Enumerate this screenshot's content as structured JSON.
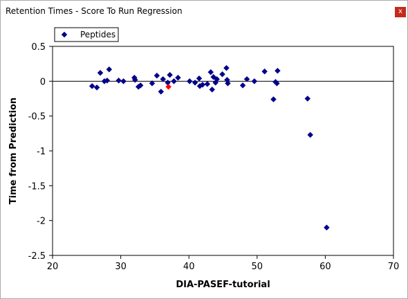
{
  "window": {
    "title": "Retention Times - Score To Run Regression",
    "close_label": "x"
  },
  "colors": {
    "point": "#00008b",
    "highlight": "#ff0000"
  },
  "chart_data": {
    "type": "scatter",
    "xlabel": "DIA-PASEF-tutorial",
    "ylabel": "Time from Prediction",
    "xlim": [
      20,
      70
    ],
    "ylim": [
      -2.5,
      0.5
    ],
    "xticks": [
      20,
      30,
      40,
      50,
      60,
      70
    ],
    "yticks": [
      0.5,
      0,
      -0.5,
      -1,
      -1.5,
      -2,
      -2.5
    ],
    "grid": false,
    "zero_line": true,
    "legend": {
      "position": "top-left",
      "entries": [
        "Peptides"
      ]
    },
    "series": [
      {
        "name": "Peptides",
        "x": [
          25.8,
          26.5,
          27.0,
          27.6,
          28.0,
          28.3,
          29.7,
          30.4,
          32.0,
          32.1,
          32.6,
          32.9,
          34.6,
          35.3,
          35.9,
          36.2,
          36.9,
          37.2,
          37.8,
          38.4,
          40.1,
          40.9,
          41.5,
          41.6,
          42.0,
          42.7,
          43.2,
          43.4,
          43.6,
          43.9,
          44.1,
          44.9,
          45.5,
          45.6,
          45.7,
          47.9,
          48.5,
          49.6,
          51.1,
          52.4,
          52.7,
          52.9,
          53.0,
          57.4,
          57.8,
          60.2
        ],
        "y": [
          -0.07,
          -0.09,
          0.12,
          0.0,
          0.01,
          0.17,
          0.01,
          0.0,
          0.05,
          0.02,
          -0.08,
          -0.06,
          -0.03,
          0.08,
          -0.15,
          0.03,
          -0.02,
          0.09,
          0.0,
          0.05,
          0.0,
          -0.02,
          0.04,
          -0.07,
          -0.05,
          -0.04,
          0.13,
          -0.12,
          0.06,
          -0.02,
          0.03,
          0.1,
          0.19,
          0.02,
          -0.03,
          -0.06,
          0.03,
          0.0,
          0.14,
          -0.26,
          -0.01,
          -0.03,
          0.15,
          -0.25,
          -0.77,
          -2.1
        ]
      },
      {
        "name": "",
        "x": [
          37.0
        ],
        "y": [
          -0.08
        ]
      }
    ]
  }
}
